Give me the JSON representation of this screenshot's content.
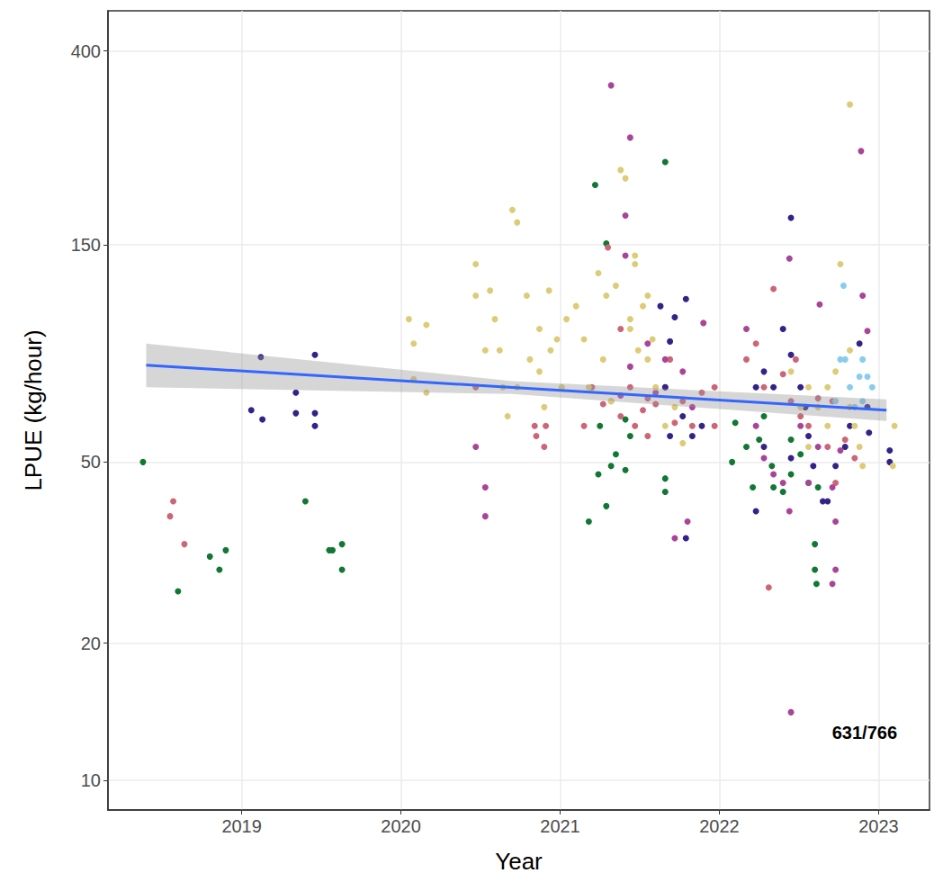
{
  "chart_data": {
    "type": "scatter",
    "x_label": "Year",
    "y_label": "LPUE (kg/hour)",
    "xlim": [
      2018.16,
      2023.32
    ],
    "xticks": [
      2019,
      2020,
      2021,
      2022,
      2023
    ],
    "ylim": [
      8.6,
      490
    ],
    "yticks": [
      10,
      20,
      50,
      150,
      400
    ],
    "log": "y",
    "grid": true,
    "annotation": "631/766",
    "series": [
      {
        "color": "#117733",
        "marker": "circle",
        "x": [
          2018.38,
          2018.6,
          2018.8,
          2018.86,
          2018.9,
          2019.4,
          2019.55,
          2019.57,
          2019.63,
          2019.63,
          2021.18,
          2021.22,
          2021.24,
          2021.29,
          2021.29,
          2021.32,
          2021.41,
          2021.35,
          2021.41,
          2021.25,
          2021.66,
          2021.66,
          2021.66,
          2021.44,
          2022.08,
          2022.1,
          2022.17,
          2022.21,
          2022.25,
          2022.33,
          2022.34,
          2022.4,
          2022.45,
          2022.45,
          2022.51,
          2022.56,
          2022.6,
          2022.6,
          2022.61,
          2022.62,
          2022.28
        ],
        "values": [
          50,
          26,
          31,
          29,
          32,
          41,
          32,
          32,
          33,
          29,
          37,
          203,
          47,
          151,
          40,
          49,
          48,
          52,
          62,
          60,
          228,
          43,
          46,
          57,
          50,
          61,
          54,
          44,
          56,
          49,
          44,
          43,
          56,
          47,
          52,
          45,
          33,
          29,
          27,
          44,
          63
        ]
      },
      {
        "color": "#cc6677",
        "marker": "circle",
        "x": [
          2018.57,
          2018.55,
          2018.64,
          2020.47,
          2020.84,
          2020.9,
          2020.91,
          2020.85,
          2021.15,
          2021.2,
          2021.27,
          2021.32,
          2021.38,
          2021.44,
          2021.47,
          2021.52,
          2021.55,
          2021.6,
          2021.66,
          2021.72,
          2021.77,
          2021.83,
          2021.89,
          2021.97,
          2021.97,
          2021.3,
          2021.38,
          2021.55,
          2021.69,
          2022.34,
          2022.17,
          2022.23,
          2022.28,
          2022.31,
          2022.4,
          2022.45,
          2022.51,
          2022.56,
          2022.62,
          2022.68,
          2022.73,
          2022.79,
          2022.85,
          2022.71,
          2022.48
        ],
        "values": [
          41,
          38,
          33,
          73,
          60,
          54,
          60,
          57,
          60,
          73,
          67,
          68,
          63,
          73,
          60,
          65,
          69,
          67,
          73,
          61,
          68,
          60,
          71,
          73,
          60,
          148,
          98,
          57,
          84,
          120,
          84,
          91,
          73,
          26.5,
          78,
          68,
          63,
          60,
          69,
          54,
          45,
          56,
          51,
          68,
          84
        ]
      },
      {
        "color": "#aa4499",
        "marker": "circle",
        "x": [
          2020.47,
          2020.53,
          2020.53,
          2021.32,
          2021.44,
          2021.41,
          2021.41,
          2021.72,
          2021.8,
          2021.9,
          2021.55,
          2021.66,
          2021.77,
          2021.44,
          2021.38,
          2021.6,
          2021.83,
          2022.44,
          2022.17,
          2022.23,
          2022.28,
          2022.34,
          2022.4,
          2022.44,
          2022.45,
          2022.56,
          2022.62,
          2022.63,
          2022.71,
          2022.73,
          2022.71,
          2022.73,
          2022.89,
          2022.9,
          2022.93,
          2022.51,
          2022.54,
          2022.76
        ],
        "values": [
          54,
          44,
          38,
          336,
          258,
          174,
          142,
          34,
          37,
          101,
          91,
          84,
          79,
          81,
          70,
          71,
          66,
          140,
          98,
          60,
          51,
          47,
          45,
          39,
          14.1,
          45,
          54,
          111,
          44,
          37,
          27,
          29,
          241,
          116,
          97,
          60,
          66,
          53
        ]
      },
      {
        "color": "#332288",
        "marker": "circle",
        "x": [
          2019.12,
          2019.06,
          2019.13,
          2019.34,
          2019.34,
          2019.46,
          2019.46,
          2019.46,
          2021.63,
          2021.72,
          2021.79,
          2021.69,
          2021.66,
          2021.69,
          2021.77,
          2021.79,
          2021.83,
          2021.89,
          2022.23,
          2022.28,
          2022.34,
          2022.4,
          2022.45,
          2022.45,
          2022.51,
          2022.54,
          2022.56,
          2022.59,
          2022.65,
          2022.68,
          2022.73,
          2022.79,
          2022.82,
          2022.88,
          2022.93,
          2022.94,
          2023.07,
          2023.07,
          2022.28,
          2022.45,
          2022.23
        ],
        "values": [
          85,
          65,
          62,
          71,
          64,
          86,
          64,
          60,
          110,
          104,
          114,
          92,
          73,
          57,
          63,
          34,
          57,
          60,
          73,
          79,
          73,
          98,
          172,
          86,
          73,
          66,
          57,
          49,
          41,
          41,
          49,
          54,
          60,
          91,
          66,
          58,
          53,
          50,
          54,
          51,
          39
        ]
      },
      {
        "color": "#ddcc77",
        "marker": "circle",
        "x": [
          2020.05,
          2020.08,
          2020.16,
          2020.08,
          2020.16,
          2020.47,
          2020.47,
          2020.56,
          2020.59,
          2020.62,
          2020.64,
          2020.7,
          2020.73,
          2020.73,
          2020.79,
          2020.81,
          2020.87,
          2020.9,
          2020.93,
          2020.94,
          2020.98,
          2021.04,
          2020.53,
          2020.67,
          2020.87,
          2021.01,
          2021.1,
          2021.15,
          2021.18,
          2021.24,
          2021.29,
          2021.35,
          2021.38,
          2021.41,
          2021.44,
          2021.47,
          2021.49,
          2021.52,
          2021.55,
          2021.58,
          2021.6,
          2021.66,
          2021.72,
          2021.77,
          2021.27,
          2021.32,
          2021.44,
          2021.55,
          2021.47,
          2022.45,
          2022.51,
          2022.56,
          2022.62,
          2022.68,
          2022.73,
          2022.76,
          2022.82,
          2022.82,
          2022.85,
          2022.88,
          2022.9,
          2023.09,
          2023.1,
          2022.82,
          2022.68,
          2022.56
        ],
        "values": [
          103,
          91,
          100,
          76,
          71,
          136,
          116,
          119,
          103,
          88,
          73,
          179,
          168,
          73,
          116,
          84,
          98,
          66,
          119,
          88,
          93,
          103,
          88,
          63,
          79,
          73,
          110,
          93,
          73,
          130,
          116,
          122,
          219,
          210,
          98,
          136,
          88,
          110,
          84,
          93,
          73,
          60,
          66,
          55,
          84,
          68,
          103,
          116,
          142,
          79,
          66,
          73,
          66,
          73,
          79,
          136,
          305,
          66,
          60,
          54,
          49,
          49,
          60,
          88,
          60,
          54
        ]
      },
      {
        "color": "#88ccee",
        "marker": "circle",
        "x": [
          2022.78,
          2022.76,
          2022.82,
          2022.9,
          2022.88,
          2022.93,
          2022.96,
          2022.9,
          2022.85,
          2022.73,
          2022.79
        ],
        "values": [
          122,
          84,
          73,
          84,
          77,
          77,
          73,
          68,
          66,
          68,
          84
        ]
      },
      {
        "type": "line",
        "color": "#3366ff",
        "line_style": "solid",
        "x": [
          2018.4,
          2020.7,
          2023.05
        ],
        "values": [
          81.6,
          72.9,
          65
        ],
        "ci_lower": [
          73,
          70.5,
          61.5
        ],
        "ci_upper": [
          91,
          75.3,
          68.6
        ]
      }
    ]
  }
}
